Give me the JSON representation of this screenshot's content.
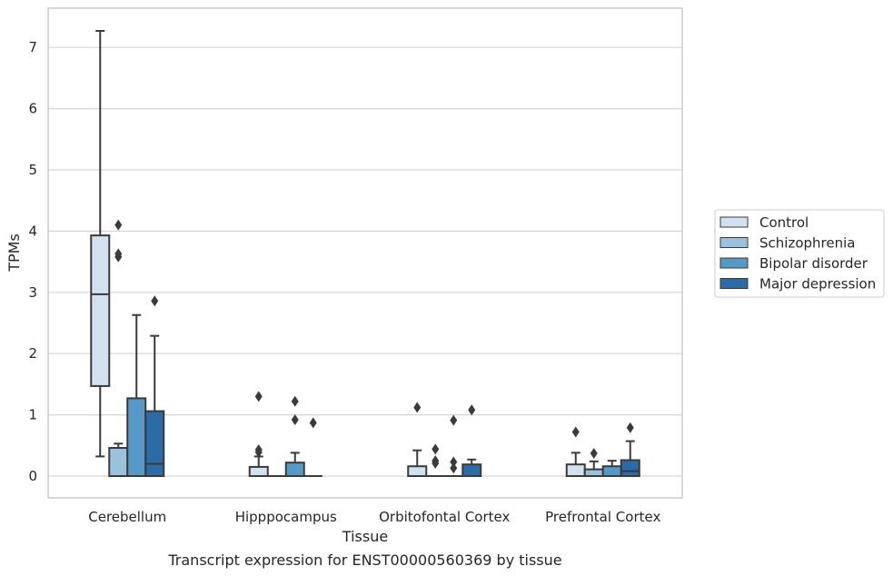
{
  "chart_data": {
    "type": "boxplot",
    "title": "",
    "caption": "Transcript expression for ENST00000560369 by tissue",
    "xlabel": "Tissue",
    "ylabel": "TPMs",
    "ylim": [
      -0.35,
      7.65
    ],
    "yticks": [
      0,
      1,
      2,
      3,
      4,
      5,
      6,
      7
    ],
    "grid": true,
    "legend_position": "right",
    "categories": [
      "Cerebellum",
      "Hipppocampus",
      "Orbitofontal Cortex",
      "Prefrontal Cortex"
    ],
    "series": [
      {
        "name": "Control",
        "color": "#d1e1f0",
        "boxes": [
          {
            "whisker_low": 0.32,
            "q1": 1.47,
            "median": 2.97,
            "q3": 3.93,
            "whisker_high": 7.27,
            "outliers": []
          },
          {
            "whisker_low": 0.0,
            "q1": 0.0,
            "median": 0.0,
            "q3": 0.15,
            "whisker_high": 0.32,
            "outliers": [
              0.39,
              0.43,
              1.3
            ]
          },
          {
            "whisker_low": 0.0,
            "q1": 0.0,
            "median": 0.0,
            "q3": 0.16,
            "whisker_high": 0.42,
            "outliers": [
              1.12
            ]
          },
          {
            "whisker_low": 0.0,
            "q1": 0.0,
            "median": 0.0,
            "q3": 0.19,
            "whisker_high": 0.38,
            "outliers": [
              0.72
            ]
          }
        ]
      },
      {
        "name": "Schizophrenia",
        "color": "#9ac2dc",
        "boxes": [
          {
            "whisker_low": 0.0,
            "q1": 0.0,
            "median": 0.0,
            "q3": 0.46,
            "whisker_high": 0.53,
            "outliers": [
              3.58,
              3.63,
              4.1
            ]
          },
          {
            "whisker_low": 0.0,
            "q1": 0.0,
            "median": 0.0,
            "q3": 0.0,
            "whisker_high": 0.0,
            "outliers": []
          },
          {
            "whisker_low": 0.0,
            "q1": 0.0,
            "median": 0.0,
            "q3": 0.0,
            "whisker_high": 0.0,
            "outliers": [
              0.21,
              0.25,
              0.44
            ]
          },
          {
            "whisker_low": 0.0,
            "q1": 0.0,
            "median": 0.0,
            "q3": 0.11,
            "whisker_high": 0.24,
            "outliers": [
              0.37
            ]
          }
        ]
      },
      {
        "name": "Bipolar disorder",
        "color": "#5699c6",
        "boxes": [
          {
            "whisker_low": 0.0,
            "q1": 0.0,
            "median": 0.0,
            "q3": 1.27,
            "whisker_high": 2.63,
            "outliers": []
          },
          {
            "whisker_low": 0.0,
            "q1": 0.0,
            "median": 0.0,
            "q3": 0.22,
            "whisker_high": 0.38,
            "outliers": [
              0.92,
              1.22
            ]
          },
          {
            "whisker_low": 0.0,
            "q1": 0.0,
            "median": 0.0,
            "q3": 0.0,
            "whisker_high": 0.0,
            "outliers": [
              0.13,
              0.23,
              0.91
            ]
          },
          {
            "whisker_low": 0.0,
            "q1": 0.0,
            "median": 0.0,
            "q3": 0.16,
            "whisker_high": 0.25,
            "outliers": []
          }
        ]
      },
      {
        "name": "Major depression",
        "color": "#2a6ba8",
        "boxes": [
          {
            "whisker_low": 0.0,
            "q1": 0.0,
            "median": 0.2,
            "q3": 1.06,
            "whisker_high": 2.29,
            "outliers": [
              2.86
            ]
          },
          {
            "whisker_low": 0.0,
            "q1": 0.0,
            "median": 0.0,
            "q3": 0.0,
            "whisker_high": 0.0,
            "outliers": [
              0.87
            ]
          },
          {
            "whisker_low": 0.0,
            "q1": 0.0,
            "median": 0.0,
            "q3": 0.19,
            "whisker_high": 0.27,
            "outliers": [
              1.08
            ]
          },
          {
            "whisker_low": 0.0,
            "q1": 0.0,
            "median": 0.08,
            "q3": 0.26,
            "whisker_high": 0.57,
            "outliers": [
              0.79
            ]
          }
        ]
      }
    ]
  }
}
